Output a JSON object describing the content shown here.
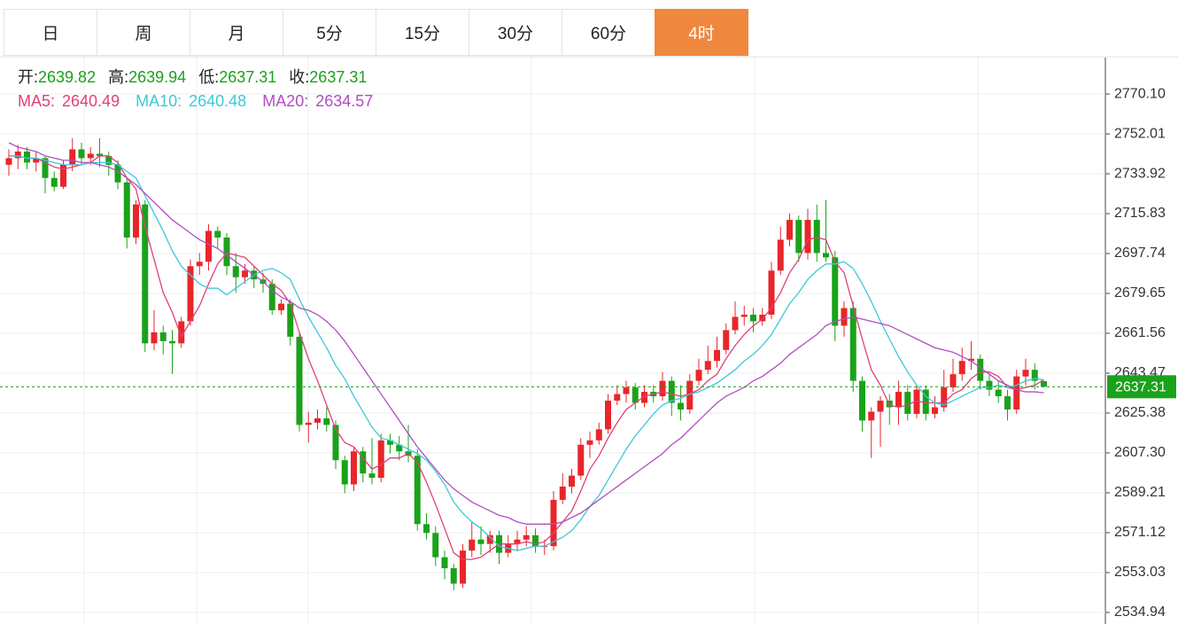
{
  "tabs": [
    "日",
    "周",
    "月",
    "5分",
    "15分",
    "30分",
    "60分",
    "4时"
  ],
  "active_tab": 7,
  "chart_data": {
    "type": "candlestick",
    "ohlc_labels": [
      "开:",
      "高:",
      "低:",
      "收:"
    ],
    "up_color": "#e8262a",
    "down_color": "#1aa21a",
    "ylim": [
      2529.7,
      2786.6
    ],
    "yticks": [
      {
        "value": 2770.1,
        "label": "2770.10"
      },
      2752.01,
      2733.92,
      2715.83,
      2697.74,
      2679.65,
      2661.56,
      2643.47,
      2625.38,
      {
        "value": 2607.3,
        "label": "2607.30"
      },
      2589.21,
      2571.12,
      2553.03,
      2534.94
    ],
    "ohlc": [
      [
        2738,
        2745,
        2733,
        2741
      ],
      [
        2741,
        2747,
        2736,
        2744
      ],
      [
        2744,
        2746,
        2736,
        2739
      ],
      [
        2739,
        2744,
        2735,
        2741
      ],
      [
        2741,
        2742,
        2725,
        2732
      ],
      [
        2732,
        2735,
        2726,
        2728
      ],
      [
        2728,
        2740,
        2727,
        2738
      ],
      [
        2738,
        2750,
        2735,
        2745
      ],
      [
        2745,
        2748,
        2738,
        2741
      ],
      [
        2741,
        2746,
        2738,
        2743
      ],
      [
        2743,
        2750,
        2737,
        2742
      ],
      [
        2742,
        2744,
        2733,
        2738
      ],
      [
        2738,
        2740,
        2727,
        2730
      ],
      [
        2730,
        2732,
        2700,
        2705
      ],
      [
        2705,
        2722,
        2702,
        2720
      ],
      [
        2720,
        2722,
        2653,
        2657
      ],
      [
        2657,
        2672,
        2654,
        2662
      ],
      [
        2662,
        2665,
        2652,
        2658
      ],
      [
        2658,
        2663,
        2643,
        2657
      ],
      [
        2657,
        2669,
        2655,
        2667
      ],
      [
        2667,
        2695,
        2665,
        2692
      ],
      [
        2692,
        2698,
        2688,
        2694
      ],
      [
        2694,
        2711,
        2690,
        2708
      ],
      [
        2708,
        2710,
        2700,
        2705
      ],
      [
        2705,
        2707,
        2688,
        2692
      ],
      [
        2692,
        2698,
        2680,
        2687
      ],
      [
        2687,
        2693,
        2684,
        2690
      ],
      [
        2690,
        2692,
        2682,
        2686
      ],
      [
        2686,
        2689,
        2680,
        2684
      ],
      [
        2684,
        2686,
        2670,
        2672
      ],
      [
        2672,
        2677,
        2670,
        2675
      ],
      [
        2675,
        2677,
        2656,
        2660
      ],
      [
        2660,
        2662,
        2617,
        2620
      ],
      [
        2620,
        2626,
        2612,
        2621
      ],
      [
        2621,
        2627,
        2618,
        2623
      ],
      [
        2623,
        2628,
        2617,
        2620
      ],
      [
        2620,
        2622,
        2600,
        2604
      ],
      [
        2604,
        2606,
        2589,
        2593
      ],
      [
        2593,
        2610,
        2590,
        2608
      ],
      [
        2608,
        2610,
        2594,
        2598
      ],
      [
        2598,
        2614,
        2593,
        2596
      ],
      [
        2596,
        2616,
        2594,
        2613
      ],
      [
        2613,
        2616,
        2607,
        2611
      ],
      [
        2611,
        2615,
        2604,
        2608
      ],
      [
        2608,
        2620,
        2603,
        2606
      ],
      [
        2606,
        2609,
        2572,
        2575
      ],
      [
        2575,
        2580,
        2568,
        2571
      ],
      [
        2571,
        2574,
        2556,
        2560
      ],
      [
        2560,
        2563,
        2550,
        2555
      ],
      [
        2555,
        2557,
        2545,
        2548
      ],
      [
        2548,
        2566,
        2546,
        2563
      ],
      [
        2563,
        2576,
        2560,
        2568
      ],
      [
        2568,
        2574,
        2561,
        2566
      ],
      [
        2566,
        2572,
        2562,
        2570
      ],
      [
        2570,
        2572,
        2557,
        2562
      ],
      [
        2562,
        2570,
        2560,
        2566
      ],
      [
        2566,
        2572,
        2563,
        2568
      ],
      [
        2568,
        2574,
        2565,
        2570
      ],
      [
        2570,
        2573,
        2562,
        2565
      ],
      [
        2565,
        2568,
        2561,
        2565
      ],
      [
        2565,
        2590,
        2563,
        2586
      ],
      [
        2586,
        2598,
        2584,
        2592
      ],
      [
        2592,
        2600,
        2589,
        2597
      ],
      [
        2597,
        2614,
        2595,
        2611
      ],
      [
        2611,
        2617,
        2605,
        2613
      ],
      [
        2613,
        2621,
        2611,
        2618
      ],
      [
        2618,
        2634,
        2616,
        2631
      ],
      [
        2631,
        2638,
        2629,
        2634
      ],
      [
        2634,
        2640,
        2630,
        2637
      ],
      [
        2637,
        2639,
        2627,
        2630
      ],
      [
        2630,
        2638,
        2628,
        2635
      ],
      [
        2635,
        2638,
        2630,
        2633
      ],
      [
        2633,
        2644,
        2631,
        2640
      ],
      [
        2640,
        2642,
        2624,
        2630
      ],
      [
        2630,
        2638,
        2622,
        2627
      ],
      [
        2627,
        2643,
        2625,
        2640
      ],
      [
        2640,
        2650,
        2638,
        2645
      ],
      [
        2645,
        2656,
        2643,
        2649
      ],
      [
        2649,
        2660,
        2646,
        2654
      ],
      [
        2654,
        2666,
        2652,
        2663
      ],
      [
        2663,
        2676,
        2661,
        2669
      ],
      [
        2669,
        2674,
        2665,
        2670
      ],
      [
        2670,
        2673,
        2662,
        2667
      ],
      [
        2667,
        2673,
        2665,
        2670
      ],
      [
        2670,
        2694,
        2668,
        2690
      ],
      [
        2690,
        2710,
        2688,
        2704
      ],
      [
        2704,
        2716,
        2701,
        2713
      ],
      [
        2713,
        2715,
        2694,
        2698
      ],
      [
        2698,
        2718,
        2695,
        2713
      ],
      [
        2713,
        2720,
        2694,
        2698
      ],
      [
        2698,
        2722,
        2694,
        2696
      ],
      [
        2696,
        2699,
        2658,
        2665
      ],
      [
        2665,
        2676,
        2660,
        2673
      ],
      [
        2673,
        2676,
        2635,
        2640
      ],
      [
        2640,
        2642,
        2617,
        2622
      ],
      [
        2622,
        2628,
        2605,
        2626
      ],
      [
        2626,
        2633,
        2610,
        2631
      ],
      [
        2631,
        2634,
        2620,
        2628
      ],
      [
        2628,
        2640,
        2620,
        2635
      ],
      [
        2635,
        2638,
        2622,
        2625
      ],
      [
        2625,
        2638,
        2623,
        2636
      ],
      [
        2636,
        2638,
        2622,
        2625
      ],
      [
        2625,
        2633,
        2623,
        2628
      ],
      [
        2628,
        2645,
        2626,
        2637
      ],
      [
        2637,
        2650,
        2635,
        2643
      ],
      [
        2643,
        2655,
        2640,
        2649
      ],
      [
        2649,
        2658,
        2645,
        2650
      ],
      [
        2650,
        2652,
        2636,
        2640
      ],
      [
        2640,
        2643,
        2633,
        2636
      ],
      [
        2636,
        2640,
        2630,
        2633
      ],
      [
        2633,
        2636,
        2622,
        2627
      ],
      [
        2627,
        2645,
        2625,
        2642
      ],
      [
        2642,
        2650,
        2638,
        2645
      ],
      [
        2645,
        2648,
        2636,
        2640
      ],
      [
        2639.82,
        2639.94,
        2637.31,
        2637.31
      ]
    ],
    "series": [
      {
        "name": "MA5:",
        "color": "#e0407a",
        "values": [
          2742,
          2742,
          2741,
          2741,
          2739,
          2737,
          2736,
          2737,
          2738,
          2739,
          2742,
          2742,
          2739,
          2732,
          2727,
          2710,
          2695,
          2680,
          2671,
          2660,
          2667,
          2674,
          2684,
          2693,
          2698,
          2697,
          2696,
          2692,
          2688,
          2684,
          2681,
          2675,
          2662,
          2650,
          2640,
          2629,
          2618,
          2612,
          2610,
          2605,
          2600,
          2602,
          2605,
          2605,
          2607,
          2603,
          2594,
          2584,
          2573,
          2562,
          2559,
          2559,
          2560,
          2563,
          2566,
          2566,
          2566,
          2567,
          2566,
          2567,
          2571,
          2576,
          2581,
          2590,
          2600,
          2606,
          2614,
          2621,
          2627,
          2630,
          2633,
          2634,
          2635,
          2634,
          2633,
          2634,
          2636,
          2640,
          2643,
          2650,
          2656,
          2661,
          2665,
          2668,
          2673,
          2680,
          2689,
          2695,
          2704,
          2705,
          2704,
          2694,
          2689,
          2674,
          2659,
          2645,
          2638,
          2629,
          2628,
          2629,
          2631,
          2630,
          2630,
          2630,
          2634,
          2636,
          2641,
          2644,
          2644,
          2642,
          2637,
          2636,
          2637,
          2638,
          2640.49
        ]
      },
      {
        "name": "MA10:",
        "color": "#3ec8d8",
        "values": [
          2742,
          2742,
          2741,
          2741,
          2740,
          2739,
          2738,
          2738,
          2738,
          2739,
          2739,
          2739,
          2738,
          2735,
          2732,
          2724,
          2716,
          2708,
          2699,
          2692,
          2688,
          2684,
          2682,
          2682,
          2679,
          2682,
          2685,
          2688,
          2690,
          2691,
          2689,
          2686,
          2677,
          2669,
          2662,
          2655,
          2647,
          2641,
          2633,
          2626,
          2619,
          2614,
          2613,
          2611,
          2609,
          2607,
          2604,
          2599,
          2593,
          2585,
          2580,
          2576,
          2573,
          2569,
          2565,
          2564,
          2563,
          2564,
          2565,
          2565,
          2567,
          2569,
          2572,
          2577,
          2583,
          2588,
          2595,
          2602,
          2609,
          2615,
          2620,
          2625,
          2629,
          2631,
          2632,
          2634,
          2635,
          2637,
          2639,
          2642,
          2645,
          2649,
          2652,
          2656,
          2661,
          2668,
          2675,
          2680,
          2686,
          2690,
          2693,
          2693,
          2694,
          2691,
          2684,
          2676,
          2667,
          2659,
          2651,
          2644,
          2638,
          2633,
          2630,
          2629,
          2631,
          2633,
          2635,
          2637,
          2637,
          2638,
          2637,
          2638,
          2640,
          2641,
          2640.48
        ]
      },
      {
        "name": "MA20:",
        "color": "#b04ec0",
        "values": [
          2748,
          2746,
          2745,
          2744,
          2742,
          2741,
          2740,
          2740,
          2739,
          2739,
          2738,
          2737,
          2735,
          2732,
          2729,
          2725,
          2721,
          2717,
          2713,
          2710,
          2707,
          2704,
          2702,
          2700,
          2697,
          2694,
          2691,
          2688,
          2685,
          2681,
          2678,
          2676,
          2673,
          2672,
          2670,
          2667,
          2663,
          2658,
          2652,
          2646,
          2640,
          2634,
          2628,
          2622,
          2616,
          2610,
          2605,
          2600,
          2595,
          2591,
          2588,
          2585,
          2583,
          2581,
          2579,
          2578,
          2576,
          2575,
          2575,
          2575,
          2575,
          2576,
          2578,
          2580,
          2583,
          2586,
          2589,
          2592,
          2595,
          2598,
          2601,
          2604,
          2607,
          2611,
          2614,
          2618,
          2622,
          2626,
          2630,
          2633,
          2635,
          2637,
          2640,
          2642,
          2645,
          2648,
          2652,
          2655,
          2658,
          2661,
          2665,
          2667,
          2668,
          2669,
          2668,
          2667,
          2666,
          2665,
          2663,
          2661,
          2659,
          2657,
          2655,
          2654,
          2653,
          2651,
          2649,
          2646,
          2643,
          2640,
          2638,
          2636,
          2635,
          2635,
          2634.57
        ]
      }
    ]
  }
}
